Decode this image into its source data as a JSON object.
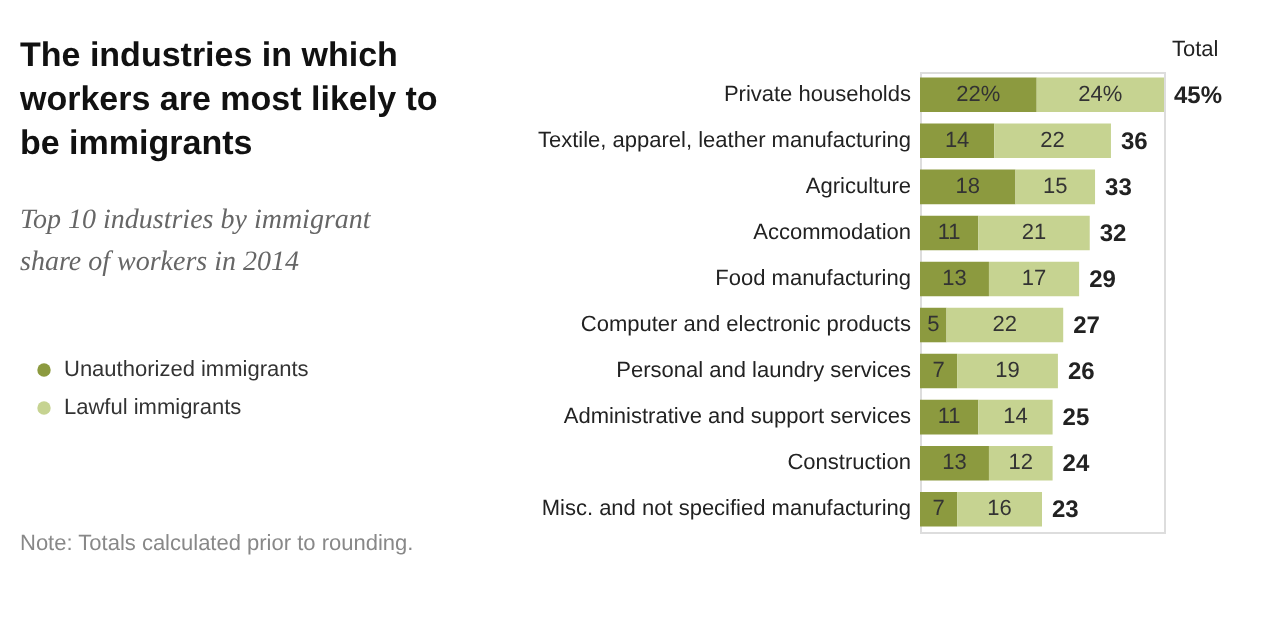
{
  "chart_data": {
    "type": "bar",
    "orientation": "horizontal",
    "stacked": true,
    "title": "The industries in which workers are most likely to be immigrants",
    "subtitle": "Top 10 industries by immigrant share of workers in 2014",
    "categories": [
      "Private households",
      "Textile, apparel, leather manufacturing",
      "Agriculture",
      "Accommodation",
      "Food manufacturing",
      "Computer and electronic products",
      "Personal and laundry services",
      "Administrative and support services",
      "Construction",
      "Misc. and not specified manufacturing"
    ],
    "series": [
      {
        "name": "Unauthorized immigrants",
        "color": "#8c9a3f",
        "values": [
          22,
          14,
          18,
          11,
          13,
          5,
          7,
          11,
          13,
          7
        ],
        "value_labels": [
          "22%",
          "14",
          "18",
          "11",
          "13",
          "5",
          "7",
          "11",
          "13",
          "7"
        ]
      },
      {
        "name": "Lawful immigrants",
        "color": "#c6d391",
        "values": [
          24,
          22,
          15,
          21,
          17,
          22,
          19,
          14,
          12,
          16
        ],
        "value_labels": [
          "24%",
          "22",
          "15",
          "21",
          "17",
          "22",
          "19",
          "14",
          "12",
          "16"
        ]
      }
    ],
    "totals": [
      "45%",
      "36",
      "33",
      "32",
      "29",
      "27",
      "26",
      "25",
      "24",
      "23"
    ],
    "legend": "left",
    "grid": false,
    "annotations": [
      "Total",
      "Note: Totals calculated prior to rounding."
    ]
  }
}
